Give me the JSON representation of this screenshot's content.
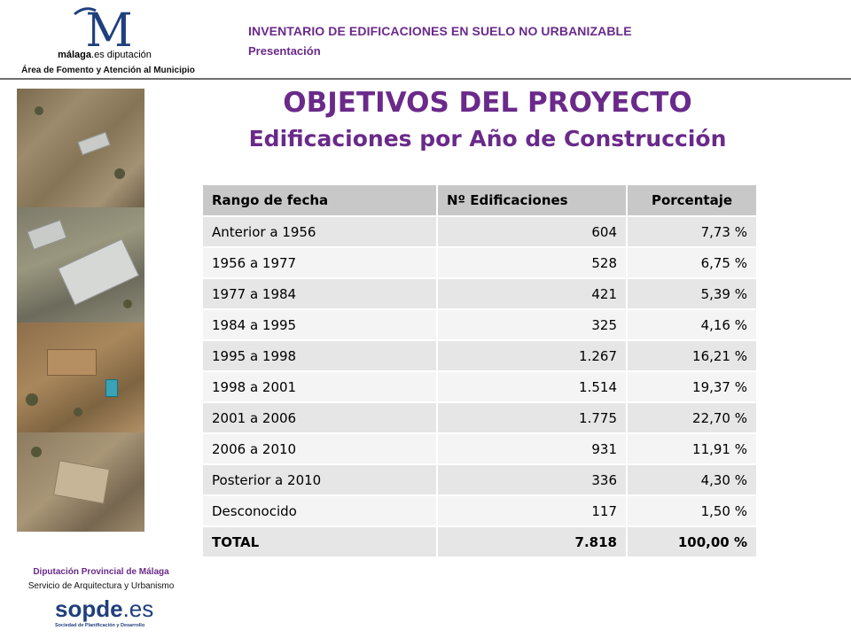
{
  "header": {
    "logo_brand": "málaga",
    "logo_brand_suffix": ".es diputación",
    "area": "Área de Fomento y Atención al Municipio",
    "title": "INVENTARIO DE EDIFICACIONES EN SUELO NO URBANIZABLE",
    "subtitle": "Presentación"
  },
  "slide": {
    "title": "OBJETIVOS DEL PROYECTO",
    "subtitle": "Edificaciones por Año de Construcción"
  },
  "table": {
    "headers": [
      "Rango de fecha",
      "Nº Edificaciones",
      "Porcentaje"
    ],
    "rows": [
      {
        "rango": "Anterior a 1956",
        "num": "604",
        "pct": "7,73 %"
      },
      {
        "rango": "1956 a 1977",
        "num": "528",
        "pct": "6,75 %"
      },
      {
        "rango": "1977 a 1984",
        "num": "421",
        "pct": "5,39 %"
      },
      {
        "rango": "1984 a 1995",
        "num": "325",
        "pct": "4,16 %"
      },
      {
        "rango": "1995 a 1998",
        "num": "1.267",
        "pct": "16,21 %"
      },
      {
        "rango": "1998 a 2001",
        "num": "1.514",
        "pct": "19,37 %"
      },
      {
        "rango": "2001 a 2006",
        "num": "1.775",
        "pct": "22,70 %"
      },
      {
        "rango": "2006 a 2010",
        "num": "931",
        "pct": "11,91 %"
      },
      {
        "rango": "Posterior a 2010",
        "num": "336",
        "pct": "4,30 %"
      },
      {
        "rango": "Desconocido",
        "num": "117",
        "pct": "1,50 %"
      }
    ],
    "total": {
      "rango": "TOTAL",
      "num": "7.818",
      "pct": "100,00 %"
    }
  },
  "footer": {
    "org": "Diputación Provincial de Málaga",
    "service": "Servicio de Arquitectura y Urbanismo",
    "sopde": "sopde",
    "sopde_suffix": ".es",
    "sopde_sub": "Sociedad de Planificación y Desarrollo"
  },
  "colors": {
    "accent": "#6a2a8a",
    "table_header": "#c8c8c8",
    "row_odd": "#e6e6e6",
    "row_even": "#f4f4f4",
    "sopde_blue": "#1f3f7d"
  }
}
